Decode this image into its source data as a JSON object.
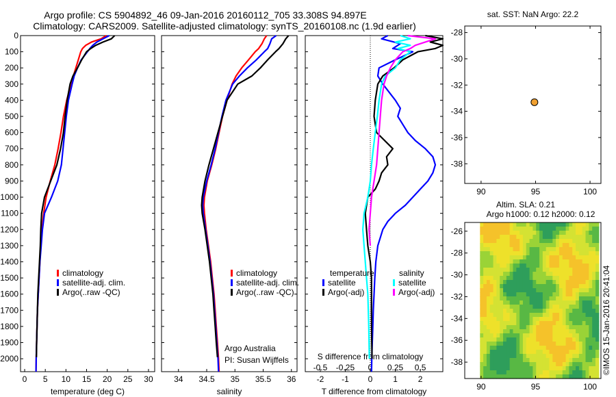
{
  "header": {
    "title_line1": "Argo profile: CS 5904892_46 09-Jan-2016 20160112_705 33.308S 94.897E",
    "title_line2": "Climatology: CARS2009. Satellite-adjusted climatology: synTS_20160108.nc (1.9d earlier)"
  },
  "colors": {
    "climatology": "#ff0000",
    "satellite": "#0000ff",
    "argo": "#000000",
    "salt_satellite": "#00ffff",
    "salt_argo": "#ff00ff",
    "marker": "#f0a030"
  },
  "chart_data": [
    {
      "id": "temperature",
      "type": "line",
      "xlabel": "temperature (deg C)",
      "ylabel": "",
      "xlim": [
        -1,
        31.5
      ],
      "ylim": [
        2080,
        0
      ],
      "xticks": [
        0,
        5,
        10,
        15,
        20,
        25,
        30
      ],
      "yticks": [
        0,
        100,
        200,
        300,
        400,
        500,
        600,
        700,
        800,
        900,
        1000,
        1100,
        1200,
        1300,
        1400,
        1500,
        1600,
        1700,
        1800,
        1900,
        2000
      ],
      "legend": [
        "climatology",
        "satellite-adj. clim.",
        "Argo(..raw -QC)"
      ],
      "legend_position": "center-right",
      "series": [
        {
          "name": "climatology",
          "color": "#ff0000",
          "depth": [
            0,
            20,
            40,
            60,
            80,
            100,
            150,
            200,
            250,
            300,
            400,
            500,
            600,
            700,
            800,
            900,
            1000,
            1100,
            1200,
            1300,
            1400,
            1500,
            1600,
            1700,
            1800,
            1900,
            2000,
            2080
          ],
          "values": [
            19.8,
            18.5,
            16.2,
            14.8,
            14.0,
            13.6,
            13.0,
            12.4,
            11.8,
            11.2,
            10.2,
            9.4,
            8.8,
            8.1,
            7.3,
            6.2,
            5.2,
            4.6,
            4.2,
            3.9,
            3.7,
            3.5,
            3.3,
            3.1,
            3.0,
            2.9,
            2.8,
            2.75
          ]
        },
        {
          "name": "satellite-adj. clim.",
          "color": "#0000ff",
          "depth": [
            0,
            20,
            40,
            60,
            80,
            100,
            150,
            200,
            250,
            300,
            400,
            500,
            600,
            700,
            800,
            900,
            1000,
            1100,
            1200,
            1300,
            1400,
            1500,
            1600,
            1700,
            1800,
            1900,
            2000,
            2080
          ],
          "values": [
            20.5,
            19.0,
            17.5,
            16.5,
            15.8,
            15.2,
            13.7,
            12.8,
            12.0,
            11.5,
            10.6,
            10.1,
            9.7,
            9.3,
            8.9,
            8.0,
            6.5,
            4.8,
            4.3,
            4.0,
            3.7,
            3.5,
            3.3,
            3.1,
            3.0,
            2.9,
            2.8,
            2.75
          ]
        },
        {
          "name": "Argo(..raw -QC)",
          "color": "#000000",
          "depth": [
            0,
            20,
            40,
            60,
            80,
            100,
            150,
            200,
            250,
            300,
            400,
            500,
            600,
            700,
            800,
            900,
            1000,
            1100,
            1200,
            1300,
            1400,
            1500,
            1600,
            1700,
            1800,
            1900,
            1990
          ],
          "values": [
            21.8,
            21.0,
            19.0,
            17.2,
            16.0,
            15.0,
            13.8,
            12.8,
            11.7,
            11.0,
            10.3,
            9.8,
            9.4,
            8.7,
            7.8,
            6.3,
            4.8,
            4.1,
            3.9,
            3.8,
            3.6,
            3.4,
            3.2,
            3.1,
            3.0,
            2.9,
            2.85
          ]
        }
      ]
    },
    {
      "id": "salinity",
      "type": "line",
      "xlabel": "salinity",
      "ylabel": "",
      "xlim": [
        33.7,
        36.1
      ],
      "ylim": [
        2080,
        0
      ],
      "xticks": [
        34,
        34.5,
        35,
        35.5,
        36
      ],
      "legend": [
        "climatology",
        "satellite-adj. clim.",
        "Argo(..raw -QC)"
      ],
      "legend_position": "center-right",
      "annotation": [
        "Argo Australia",
        "PI: Susan Wijffels"
      ],
      "series": [
        {
          "name": "climatology",
          "color": "#ff0000",
          "depth": [
            0,
            20,
            50,
            80,
            100,
            150,
            200,
            250,
            300,
            400,
            500,
            600,
            700,
            800,
            900,
            1000,
            1050,
            1100,
            1200,
            1300,
            1400,
            1500,
            1600,
            1700,
            1800,
            1900,
            2000,
            2080
          ],
          "values": [
            35.56,
            35.52,
            35.48,
            35.42,
            35.36,
            35.24,
            35.12,
            35.02,
            34.95,
            34.86,
            34.78,
            34.72,
            34.66,
            34.59,
            34.51,
            34.46,
            34.45,
            34.46,
            34.49,
            34.53,
            34.57,
            34.6,
            34.63,
            34.65,
            34.67,
            34.69,
            34.71,
            34.72
          ]
        },
        {
          "name": "satellite-adj. clim.",
          "color": "#0000ff",
          "depth": [
            0,
            20,
            50,
            80,
            100,
            150,
            200,
            250,
            300,
            400,
            500,
            600,
            700,
            800,
            900,
            1000,
            1050,
            1100,
            1200,
            1300,
            1400,
            1500,
            1600,
            1700,
            1800,
            1900,
            2000,
            2080
          ],
          "values": [
            35.73,
            35.65,
            35.62,
            35.58,
            35.52,
            35.38,
            35.22,
            35.08,
            34.96,
            34.84,
            34.77,
            34.71,
            34.65,
            34.58,
            34.5,
            34.44,
            34.43,
            34.44,
            34.48,
            34.52,
            34.56,
            34.59,
            34.62,
            34.64,
            34.66,
            34.68,
            34.7,
            34.71
          ]
        },
        {
          "name": "Argo(..raw -QC)",
          "color": "#000000",
          "depth": [
            0,
            20,
            50,
            80,
            100,
            150,
            200,
            250,
            300,
            400,
            500,
            600,
            700,
            800,
            900,
            1000,
            1050,
            1100,
            1200,
            1300,
            1400,
            1500,
            1600,
            1700,
            1800,
            1900,
            1990
          ],
          "values": [
            35.95,
            35.9,
            35.85,
            35.78,
            35.72,
            35.58,
            35.45,
            35.3,
            35.05,
            34.86,
            34.78,
            34.7,
            34.62,
            34.54,
            34.47,
            34.42,
            34.41,
            34.42,
            34.47,
            34.51,
            34.55,
            34.58,
            34.61,
            34.63,
            34.65,
            34.67,
            34.69
          ]
        }
      ]
    },
    {
      "id": "differences",
      "type": "line",
      "xlabel": "T difference from climatology",
      "top_xlabel": "S difference from climatology",
      "xlim": [
        -2.6,
        2.9
      ],
      "ylim": [
        2080,
        0
      ],
      "xticks": [
        -2,
        -1,
        0,
        1,
        2
      ],
      "top_xticks": [
        "-0.5",
        "-0.25",
        "0",
        "0.25",
        "0.5"
      ],
      "top_xtick_values": [
        -2,
        -1,
        0,
        1,
        2
      ],
      "legend_headers": [
        "temperature",
        "salinity"
      ],
      "legend": [
        "satellite",
        "Argo(-adj)",
        "satellite",
        "Argo(-adj)"
      ],
      "legend_position": "center",
      "series": [
        {
          "name": "satellite",
          "color": "#0000ff",
          "depth": [
            0,
            20,
            50,
            80,
            100,
            150,
            200,
            250,
            300,
            400,
            450,
            500,
            550,
            600,
            650,
            700,
            750,
            800,
            850,
            900,
            950,
            1000,
            1050,
            1100,
            1150,
            1200,
            1300,
            1400,
            1500,
            1600,
            1700,
            1800,
            1900,
            2000,
            2080
          ],
          "values": [
            0.7,
            0.45,
            1.2,
            0.9,
            1.7,
            1.0,
            0.35,
            0.3,
            0.5,
            1.0,
            1.2,
            1.1,
            1.3,
            1.5,
            1.8,
            2.2,
            2.5,
            2.6,
            2.5,
            2.3,
            2.0,
            1.7,
            1.4,
            1.0,
            0.7,
            0.5,
            0.3,
            0.22,
            0.18,
            0.15,
            0.12,
            0.1,
            0.08,
            0.06,
            0.05
          ]
        },
        {
          "name": "Argo(-adj)",
          "color": "#000000",
          "depth": [
            0,
            20,
            40,
            60,
            80,
            100,
            150,
            200,
            250,
            300,
            400,
            500,
            600,
            700,
            750,
            800,
            850,
            900,
            950,
            1000,
            1100,
            1200,
            1300,
            1400,
            1500,
            1600,
            1700,
            1800,
            1900,
            2000
          ],
          "values": [
            2.2,
            2.9,
            2.4,
            2.9,
            2.6,
            1.9,
            1.3,
            0.95,
            0.5,
            0.3,
            0.2,
            0.15,
            0.25,
            0.9,
            0.65,
            0.7,
            0.45,
            0.35,
            0.2,
            -0.1,
            -0.2,
            -0.15,
            -0.1,
            0.0,
            0.05,
            0.05,
            0.05,
            0.05,
            0.06,
            0.07
          ]
        },
        {
          "name": "satellite",
          "color": "#00ffff",
          "depth": [
            0,
            20,
            40,
            60,
            80,
            100,
            150,
            200,
            250,
            300,
            400,
            500,
            600,
            700,
            800,
            900,
            1000,
            1100,
            1200,
            1300,
            1400,
            1500,
            1600,
            1700,
            1800,
            1900,
            2000
          ],
          "values": [
            1.2,
            1.6,
            1.0,
            1.6,
            1.1,
            1.6,
            1.2,
            1.0,
            0.6,
            0.45,
            0.35,
            0.28,
            0.2,
            0.12,
            0.05,
            0.0,
            -0.1,
            -0.25,
            -0.3,
            -0.25,
            -0.2,
            -0.15,
            -0.1,
            -0.08,
            -0.06,
            -0.05,
            -0.04
          ]
        },
        {
          "name": "Argo(-adj)",
          "color": "#ff00ff",
          "depth": [
            0,
            20,
            40,
            60,
            80,
            100,
            150,
            200,
            250,
            300,
            400,
            500,
            600,
            700,
            800,
            900,
            1000,
            1100,
            1200,
            1300
          ],
          "values": [
            1.5,
            2.6,
            2.2,
            1.8,
            1.6,
            1.3,
            1.0,
            0.8,
            0.65,
            0.55,
            0.45,
            0.4,
            0.35,
            0.3,
            0.25,
            0.15,
            0.05,
            0.0,
            -0.05,
            0.0
          ]
        }
      ]
    },
    {
      "id": "location",
      "type": "scatter",
      "title": "sat. SST: NaN Argo: 22.2",
      "xlim": [
        88.5,
        101
      ],
      "ylim": [
        -39.5,
        -27.5
      ],
      "xticks": [
        90,
        95,
        100
      ],
      "yticks": [
        -28,
        -30,
        -32,
        -34,
        -36,
        -38
      ],
      "points": [
        {
          "x": 94.897,
          "y": -33.308
        }
      ]
    },
    {
      "id": "altimetry",
      "type": "heatmap",
      "title_line1": "Altim. SLA: 0.21",
      "title_line2": "Argo h1000: 0.12 h2000: 0.12",
      "xlim": [
        88.5,
        101
      ],
      "ylim": [
        -39.5,
        -25.2
      ],
      "xticks": [
        90,
        95,
        100
      ],
      "yticks": [
        -26,
        -28,
        -30,
        -32,
        -34,
        -36,
        -38
      ],
      "palette": [
        "#2e9e5b",
        "#58b844",
        "#9ad337",
        "#d4e233",
        "#eee12a",
        "#f5c22a"
      ]
    }
  ],
  "footer": {
    "credit": "©IMOS 15-Jan-2016 20:41:04"
  }
}
